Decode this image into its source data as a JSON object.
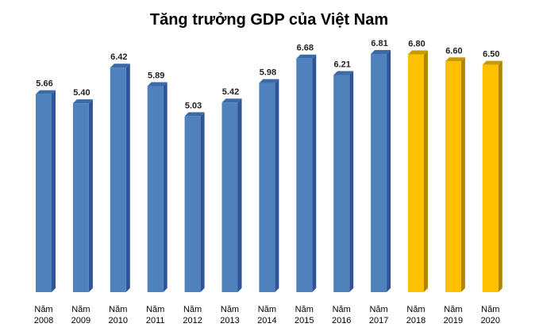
{
  "chart_data": {
    "type": "bar",
    "title": "Tăng trưởng GDP của Việt Nam",
    "xlabel": "",
    "ylabel": "",
    "ylim": [
      0,
      7
    ],
    "grid": false,
    "legend": "none",
    "categories": [
      [
        "Năm",
        "2008"
      ],
      [
        "Năm",
        "2009"
      ],
      [
        "Năm",
        "2010"
      ],
      [
        "Năm",
        "2011"
      ],
      [
        "Năm",
        "2012"
      ],
      [
        "Năm",
        "2013"
      ],
      [
        "Năm",
        "2014"
      ],
      [
        "Năm",
        "2015"
      ],
      [
        "Năm",
        "2016"
      ],
      [
        "Năm",
        "2017"
      ],
      [
        "Năm",
        "2018"
      ],
      [
        "Năm",
        "2019"
      ],
      [
        "Năm",
        "2020"
      ]
    ],
    "values": [
      5.66,
      5.4,
      6.42,
      5.89,
      5.03,
      5.42,
      5.98,
      6.68,
      6.21,
      6.81,
      6.8,
      6.6,
      6.5
    ],
    "labels": [
      "5.66",
      "5.40",
      "6.42",
      "5.89",
      "5.03",
      "5.42",
      "5.98",
      "6.68",
      "6.21",
      "6.81",
      "6.80",
      "6.60",
      "6.50"
    ],
    "bar_colors": [
      "#4f81bd",
      "#4f81bd",
      "#4f81bd",
      "#4f81bd",
      "#4f81bd",
      "#4f81bd",
      "#4f81bd",
      "#4f81bd",
      "#4f81bd",
      "#4f81bd",
      "#ffc000",
      "#ffc000",
      "#ffc000"
    ],
    "side_colors": [
      "#2f5597",
      "#2f5597",
      "#2f5597",
      "#2f5597",
      "#2f5597",
      "#2f5597",
      "#2f5597",
      "#2f5597",
      "#2f5597",
      "#2f5597",
      "#b08600",
      "#b08600",
      "#b08600"
    ],
    "top_colors": [
      "#3b6aa8",
      "#3b6aa8",
      "#3b6aa8",
      "#3b6aa8",
      "#3b6aa8",
      "#3b6aa8",
      "#3b6aa8",
      "#3b6aa8",
      "#3b6aa8",
      "#3b6aa8",
      "#c99a00",
      "#c99a00",
      "#c99a00"
    ]
  }
}
